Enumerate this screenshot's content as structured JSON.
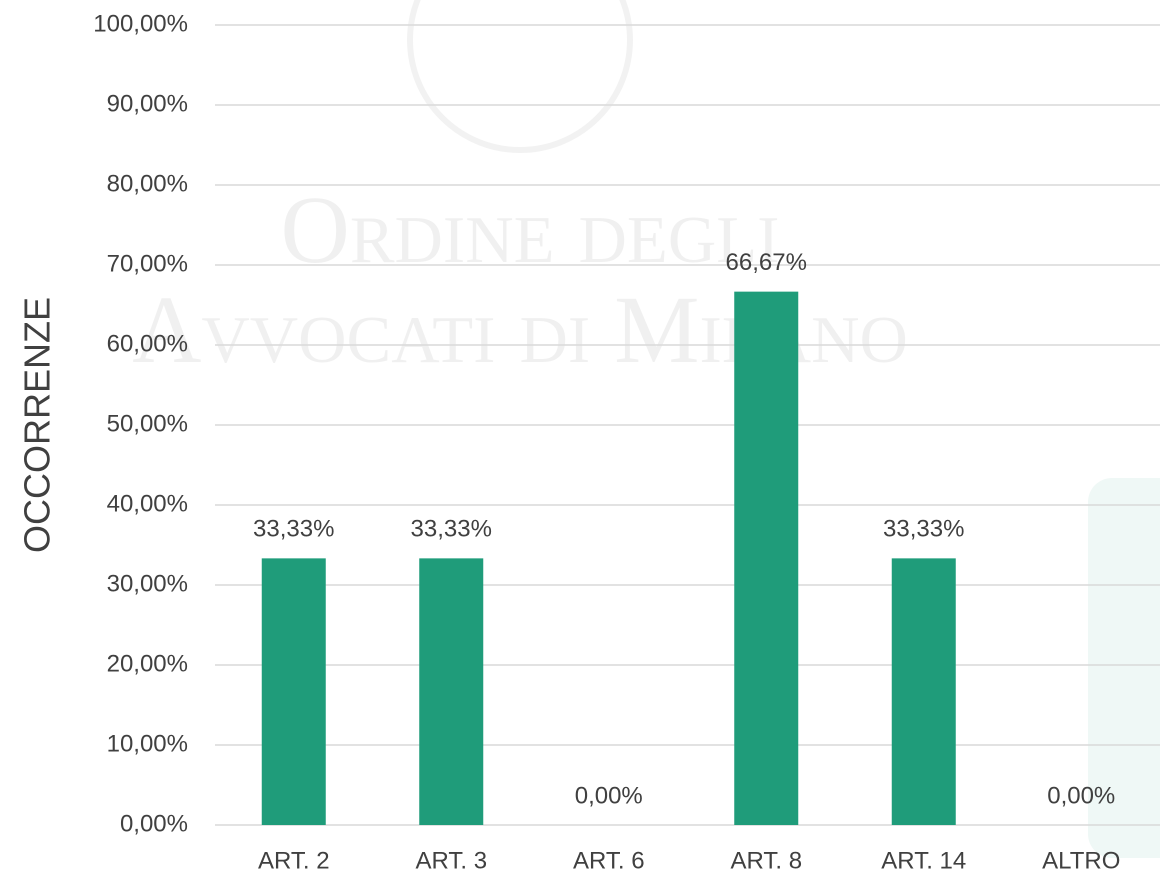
{
  "chart_data": {
    "type": "bar",
    "y_label": "OCCORRENZE",
    "watermark": [
      "Ordine degli",
      "Avvocati di Milano"
    ],
    "categories": [
      "ART. 2",
      "ART. 3",
      "ART. 6",
      "ART. 8",
      "ART. 14",
      "ALTRO"
    ],
    "values": [
      33.33,
      33.33,
      0,
      66.67,
      33.33,
      0
    ],
    "value_labels": [
      "33,33%",
      "33,33%",
      "0,00%",
      "66,67%",
      "33,33%",
      "0,00%"
    ],
    "color": "#1f9c7a",
    "ylim": [
      0,
      100
    ],
    "yticks": [
      {
        "value": 0,
        "label": "0,00%"
      },
      {
        "value": 10,
        "label": "10,00%"
      },
      {
        "value": 20,
        "label": "20,00%"
      },
      {
        "value": 30,
        "label": "30,00%"
      },
      {
        "value": 40,
        "label": "40,00%"
      },
      {
        "value": 50,
        "label": "50,00%"
      },
      {
        "value": 60,
        "label": "60,00%"
      },
      {
        "value": 70,
        "label": "70,00%"
      },
      {
        "value": 80,
        "label": "80,00%"
      },
      {
        "value": 90,
        "label": "90,00%"
      },
      {
        "value": 100,
        "label": "100,00%"
      }
    ],
    "grid": true
  }
}
